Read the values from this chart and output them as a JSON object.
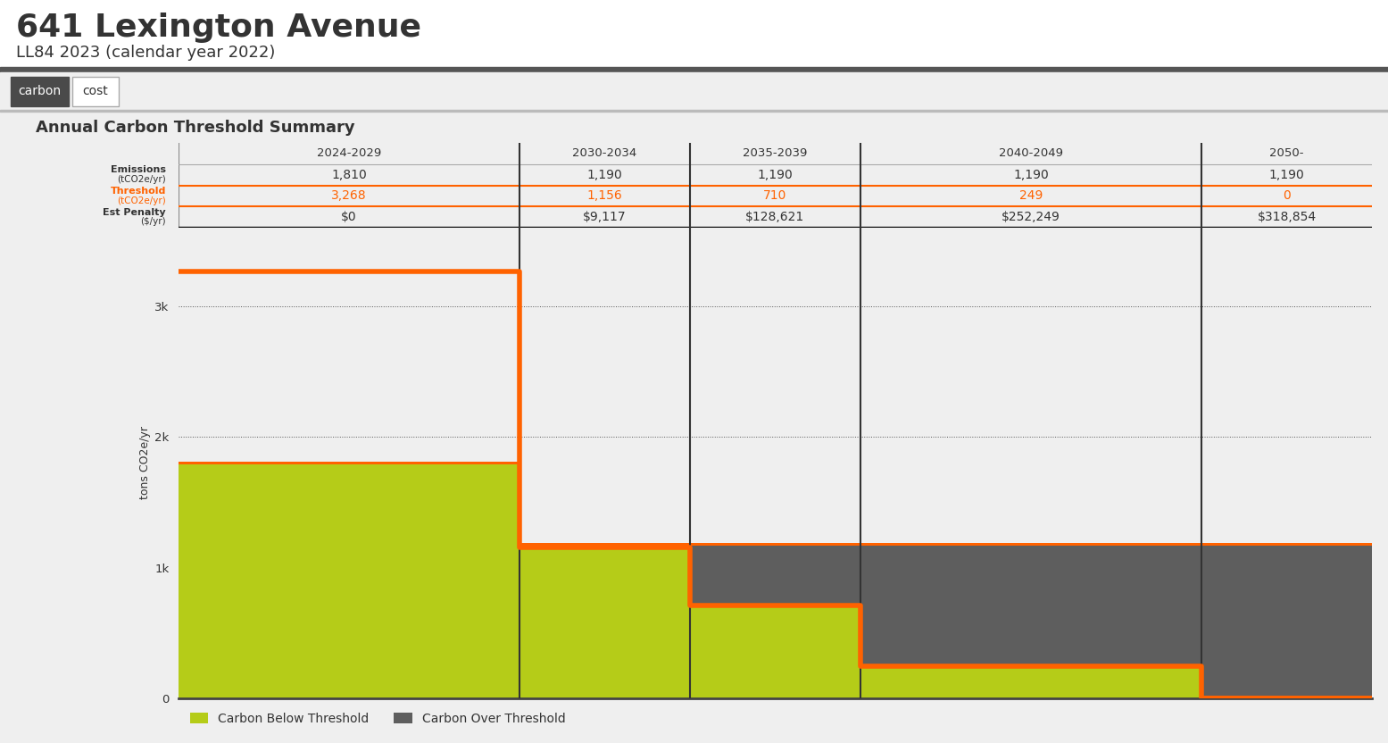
{
  "title": "641 Lexington Avenue",
  "subtitle": "LL84 2023 (calendar year 2022)",
  "section_title": "Annual Carbon Threshold Summary",
  "tab_carbon": "carbon",
  "tab_cost": "cost",
  "periods": [
    "2024-2029",
    "2030-2034",
    "2035-2039",
    "2040-2049",
    "2050-"
  ],
  "emissions": [
    1810,
    1190,
    1190,
    1190,
    1190
  ],
  "thresholds": [
    3268,
    1156,
    710,
    249,
    0
  ],
  "penalties": [
    "$0",
    "$9,117",
    "$128,621",
    "$252,249",
    "$318,854"
  ],
  "period_widths": [
    2,
    1,
    1,
    2,
    1
  ],
  "bg_color": "#efefef",
  "white": "#ffffff",
  "orange": "#ff6200",
  "light_green": "#b5cc18",
  "dark_gray": "#5e5e5e",
  "text_dark": "#333333",
  "header_sep": "#555555",
  "tab_dark_bg": "#4a4a4a",
  "y_max": 3600,
  "y_ticks": [
    0,
    1000,
    2000,
    3000
  ],
  "y_tick_labels": [
    "0",
    "1k",
    "2k",
    "3k"
  ],
  "ylabel": "tons CO2e/yr",
  "legend_below": "Carbon Below Threshold",
  "legend_over": "Carbon Over Threshold"
}
